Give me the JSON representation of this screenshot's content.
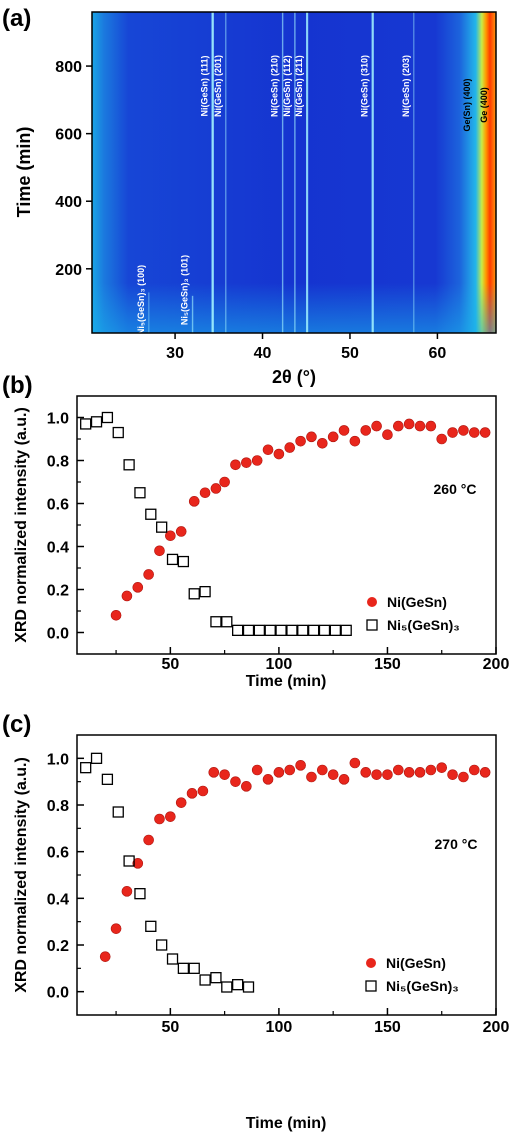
{
  "panels": {
    "a": {
      "label": "(a)"
    },
    "b": {
      "label": "(b)"
    },
    "c": {
      "label": "(c)"
    }
  },
  "chart_data": [
    {
      "id": "a",
      "type": "heatmap",
      "xlabel": "2θ (°)",
      "ylabel": "Time (min)",
      "xlim": [
        20.5,
        66.7
      ],
      "ylim": [
        10,
        960
      ],
      "xticks": [
        30,
        40,
        50,
        60
      ],
      "yticks": [
        200,
        400,
        600,
        800
      ],
      "colors": {
        "background": "#1636d2",
        "left_edge": "#18a8e6",
        "right_band": [
          "#33c9e8",
          "#d8e83a",
          "#ff8a00",
          "#ff3b00"
        ],
        "line": "#9ff0ff"
      },
      "peaks": [
        {
          "label": "Ni₅(GeSn)₃ (100)",
          "x": 27.0,
          "strength": 0.25,
          "ymax": 130
        },
        {
          "label": "Ni₅(GeSn)₃ (101)",
          "x": 32.0,
          "strength": 0.45,
          "ymax": 120
        },
        {
          "label": "Ni(GeSn) (111)",
          "x": 34.3,
          "strength": 0.95,
          "ymax": 960
        },
        {
          "label": "Ni(GeSn) (201)",
          "x": 35.8,
          "strength": 0.35,
          "ymax": 960
        },
        {
          "label": "Ni(GeSn) (210)",
          "x": 42.3,
          "strength": 0.45,
          "ymax": 960
        },
        {
          "label": "Ni(GeSn) (112)",
          "x": 43.7,
          "strength": 0.45,
          "ymax": 960
        },
        {
          "label": "Ni(GeSn) (211)",
          "x": 45.1,
          "strength": 0.85,
          "ymax": 960
        },
        {
          "label": "Ni(GeSn) (310)",
          "x": 52.6,
          "strength": 0.9,
          "ymax": 960
        },
        {
          "label": "Ni(GeSn) (203)",
          "x": 57.3,
          "strength": 0.3,
          "ymax": 960
        },
        {
          "label": "Ge(Sn) (400)",
          "x": 64.3,
          "strength": 0,
          "ymax": 960
        },
        {
          "label": "Ge (400)",
          "x": 65.9,
          "strength": 0,
          "ymax": 960
        }
      ]
    },
    {
      "id": "b",
      "type": "scatter",
      "xlabel": "Time (min)",
      "ylabel": "XRD normalized intensity (a.u.)",
      "xlim": [
        7,
        200
      ],
      "ylim": [
        -0.1,
        1.1
      ],
      "xticks": [
        50,
        100,
        150,
        200
      ],
      "yticks": [
        0.0,
        0.2,
        0.4,
        0.6,
        0.8,
        1.0
      ],
      "annotation": "260 °C",
      "legend_position": "bottom-right",
      "series": [
        {
          "name": "Ni(GeSn)",
          "marker": "circle",
          "color": "#e8261c",
          "points": [
            [
              25,
              0.08
            ],
            [
              30,
              0.17
            ],
            [
              35,
              0.21
            ],
            [
              40,
              0.27
            ],
            [
              45,
              0.38
            ],
            [
              50,
              0.45
            ],
            [
              55,
              0.47
            ],
            [
              61,
              0.61
            ],
            [
              66,
              0.65
            ],
            [
              71,
              0.67
            ],
            [
              75,
              0.7
            ],
            [
              80,
              0.78
            ],
            [
              85,
              0.79
            ],
            [
              90,
              0.8
            ],
            [
              95,
              0.85
            ],
            [
              100,
              0.83
            ],
            [
              105,
              0.86
            ],
            [
              110,
              0.89
            ],
            [
              115,
              0.91
            ],
            [
              120,
              0.88
            ],
            [
              125,
              0.91
            ],
            [
              130,
              0.94
            ],
            [
              135,
              0.89
            ],
            [
              140,
              0.94
            ],
            [
              145,
              0.96
            ],
            [
              150,
              0.92
            ],
            [
              155,
              0.96
            ],
            [
              160,
              0.97
            ],
            [
              165,
              0.96
            ],
            [
              170,
              0.96
            ],
            [
              175,
              0.9
            ],
            [
              180,
              0.93
            ],
            [
              185,
              0.94
            ],
            [
              190,
              0.93
            ],
            [
              195,
              0.93
            ]
          ]
        },
        {
          "name": "Ni₅(GeSn)₃",
          "marker": "square",
          "color": "#000000",
          "points": [
            [
              11,
              0.97
            ],
            [
              16,
              0.98
            ],
            [
              21,
              1.0
            ],
            [
              26,
              0.93
            ],
            [
              31,
              0.78
            ],
            [
              36,
              0.65
            ],
            [
              41,
              0.55
            ],
            [
              46,
              0.49
            ],
            [
              51,
              0.34
            ],
            [
              56,
              0.33
            ],
            [
              61,
              0.18
            ],
            [
              66,
              0.19
            ],
            [
              71,
              0.05
            ],
            [
              76,
              0.05
            ],
            [
              81,
              0.01
            ],
            [
              86,
              0.01
            ],
            [
              91,
              0.01
            ],
            [
              96,
              0.01
            ],
            [
              101,
              0.01
            ],
            [
              106,
              0.01
            ],
            [
              111,
              0.01
            ],
            [
              116,
              0.01
            ],
            [
              121,
              0.01
            ],
            [
              126,
              0.01
            ],
            [
              131,
              0.01
            ]
          ]
        }
      ]
    },
    {
      "id": "c",
      "type": "scatter",
      "xlabel": "Time (min)",
      "ylabel": "XRD normalized intensity (a.u.)",
      "xlim": [
        7,
        200
      ],
      "ylim": [
        -0.1,
        1.1
      ],
      "xticks": [
        50,
        100,
        150,
        200
      ],
      "yticks": [
        0.0,
        0.2,
        0.4,
        0.6,
        0.8,
        1.0
      ],
      "annotation": "270 °C",
      "legend_position": "bottom-right",
      "series": [
        {
          "name": "Ni(GeSn)",
          "marker": "circle",
          "color": "#e8261c",
          "points": [
            [
              20,
              0.15
            ],
            [
              25,
              0.27
            ],
            [
              30,
              0.43
            ],
            [
              35,
              0.55
            ],
            [
              40,
              0.65
            ],
            [
              45,
              0.74
            ],
            [
              50,
              0.75
            ],
            [
              55,
              0.81
            ],
            [
              60,
              0.85
            ],
            [
              65,
              0.86
            ],
            [
              70,
              0.94
            ],
            [
              75,
              0.93
            ],
            [
              80,
              0.9
            ],
            [
              85,
              0.88
            ],
            [
              90,
              0.95
            ],
            [
              95,
              0.91
            ],
            [
              100,
              0.94
            ],
            [
              105,
              0.95
            ],
            [
              110,
              0.97
            ],
            [
              115,
              0.92
            ],
            [
              120,
              0.95
            ],
            [
              125,
              0.93
            ],
            [
              130,
              0.91
            ],
            [
              135,
              0.98
            ],
            [
              140,
              0.94
            ],
            [
              145,
              0.93
            ],
            [
              150,
              0.93
            ],
            [
              155,
              0.95
            ],
            [
              160,
              0.94
            ],
            [
              165,
              0.94
            ],
            [
              170,
              0.95
            ],
            [
              175,
              0.96
            ],
            [
              180,
              0.93
            ],
            [
              185,
              0.92
            ],
            [
              190,
              0.95
            ],
            [
              195,
              0.94
            ]
          ]
        },
        {
          "name": "Ni₅(GeSn)₃",
          "marker": "square",
          "color": "#000000",
          "points": [
            [
              11,
              0.96
            ],
            [
              16,
              1.0
            ],
            [
              21,
              0.91
            ],
            [
              26,
              0.77
            ],
            [
              31,
              0.56
            ],
            [
              36,
              0.42
            ],
            [
              41,
              0.28
            ],
            [
              46,
              0.2
            ],
            [
              51,
              0.14
            ],
            [
              56,
              0.1
            ],
            [
              61,
              0.1
            ],
            [
              66,
              0.05
            ],
            [
              71,
              0.06
            ],
            [
              76,
              0.02
            ],
            [
              81,
              0.03
            ],
            [
              86,
              0.02
            ]
          ]
        }
      ]
    }
  ]
}
